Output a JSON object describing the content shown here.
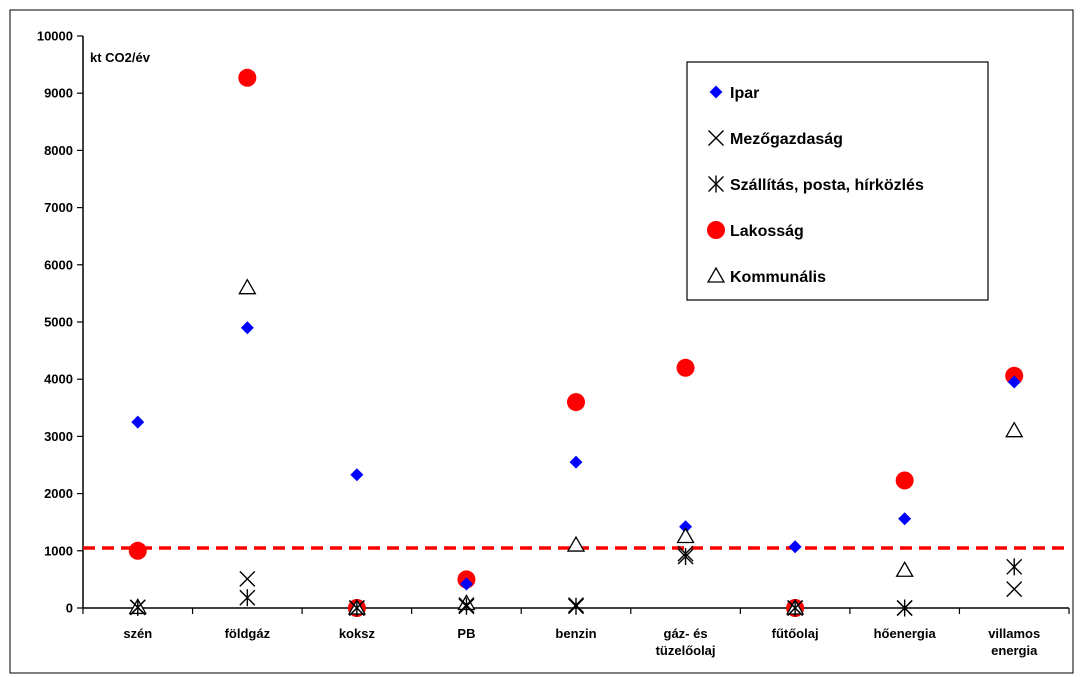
{
  "chart_data": {
    "type": "scatter",
    "ylabel": "kt CO2/év",
    "ylim": [
      0,
      10000
    ],
    "ytick_step": 1000,
    "yticks": [
      "0",
      "1000",
      "2000",
      "3000",
      "4000",
      "5000",
      "6000",
      "7000",
      "8000",
      "9000",
      "10000"
    ],
    "categories": [
      "szén",
      "földgáz",
      "koksz",
      "PB",
      "benzin",
      "gáz- és\ntüzelőolaj",
      "fűtőolaj",
      "hőenergia",
      "villamos\nenergia"
    ],
    "grid": false,
    "legend_position": "top-right",
    "reference_line": {
      "value": 1050,
      "color": "#ff0000",
      "style": "dashed"
    },
    "series": [
      {
        "name": "Ipar",
        "marker": "diamond",
        "color": "#0000ff",
        "values": [
          3250,
          4900,
          2330,
          420,
          2550,
          1420,
          1070,
          1560,
          3950
        ]
      },
      {
        "name": "Mezőgazdaság",
        "marker": "x",
        "color": "#000000",
        "values": [
          10,
          510,
          0,
          50,
          50,
          950,
          0,
          0,
          330
        ]
      },
      {
        "name": "Szállítás, posta, hírközlés",
        "marker": "asterisk",
        "color": "#000000",
        "values": [
          10,
          180,
          0,
          30,
          30,
          900,
          0,
          0,
          720
        ]
      },
      {
        "name": "Lakosság",
        "marker": "circle",
        "color": "#ff0000",
        "values": [
          1000,
          9270,
          0,
          500,
          3600,
          4200,
          0,
          2230,
          4060
        ]
      },
      {
        "name": "Kommunális",
        "marker": "triangle",
        "color": "#000000",
        "values": [
          10,
          5600,
          0,
          80,
          1100,
          1250,
          0,
          660,
          3100
        ]
      }
    ]
  }
}
